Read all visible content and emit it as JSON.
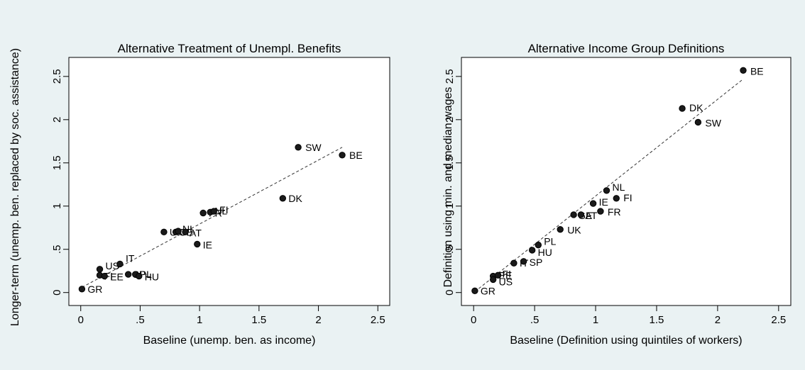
{
  "chart_data": [
    {
      "type": "scatter",
      "title": "Alternative Treatment of Unempl. Benefits",
      "xlabel": "Baseline (unemp. ben. as income)",
      "ylabel": "Longer-term (unemp. ben. replaced by soc. assistance)",
      "xlim": [
        -0.1,
        2.6
      ],
      "ylim": [
        -0.15,
        2.72
      ],
      "xticks": [
        0,
        0.5,
        1,
        1.5,
        2,
        2.5
      ],
      "xtick_labels": [
        "0",
        ".5",
        "1",
        "1.5",
        "2",
        "2.5"
      ],
      "yticks": [
        0,
        0.5,
        1,
        1.5,
        2,
        2.5
      ],
      "ytick_labels": [
        "0",
        ".5",
        "1",
        "1.5",
        "2",
        "2.5"
      ],
      "grid": false,
      "fit_line": {
        "style": "dashed",
        "x": [
          0.01,
          2.2
        ],
        "y": [
          0.06,
          1.68
        ]
      },
      "points": [
        {
          "label": "GR",
          "x": 0.01,
          "y": 0.04
        },
        {
          "label": "US",
          "x": 0.16,
          "y": 0.27
        },
        {
          "label": "FI",
          "x": 0.16,
          "y": 0.2
        },
        {
          "label": "EE",
          "x": 0.2,
          "y": 0.19
        },
        {
          "label": "IT",
          "x": 0.33,
          "y": 0.33
        },
        {
          "label": "SP",
          "x": 0.4,
          "y": 0.21
        },
        {
          "label": "PL",
          "x": 0.46,
          "y": 0.21
        },
        {
          "label": "HU",
          "x": 0.49,
          "y": 0.19
        },
        {
          "label": "UK",
          "x": 0.7,
          "y": 0.7
        },
        {
          "label": "GE",
          "x": 0.8,
          "y": 0.7
        },
        {
          "label": "NL",
          "x": 0.82,
          "y": 0.71
        },
        {
          "label": "AT",
          "x": 0.88,
          "y": 0.7
        },
        {
          "label": "IE",
          "x": 0.98,
          "y": 0.56
        },
        {
          "label": "FR",
          "x": 1.03,
          "y": 0.92
        },
        {
          "label": "NL",
          "x": 1.09,
          "y": 0.93
        },
        {
          "label": "FI",
          "x": 1.12,
          "y": 0.94
        },
        {
          "label": "DK",
          "x": 1.7,
          "y": 1.09
        },
        {
          "label": "SW",
          "x": 1.83,
          "y": 1.68
        },
        {
          "label": "BE",
          "x": 2.2,
          "y": 1.59
        }
      ]
    },
    {
      "type": "scatter",
      "title": "Alternative Income Group Definitions",
      "xlabel": "Baseline (Definition using quintiles of workers)",
      "ylabel": "Definition using min. and median wages",
      "xlim": [
        -0.1,
        2.6
      ],
      "ylim": [
        -0.15,
        2.72
      ],
      "xticks": [
        0,
        0.5,
        1,
        1.5,
        2,
        2.5
      ],
      "xtick_labels": [
        "0",
        ".5",
        "1",
        "1.5",
        "2",
        "2.5"
      ],
      "yticks": [
        0,
        0.5,
        1,
        1.5,
        2,
        2.5
      ],
      "ytick_labels": [
        "0",
        ".5",
        "1",
        "1.5",
        "2",
        "2.5"
      ],
      "grid": false,
      "fit_line": {
        "style": "dashed",
        "x": [
          0.01,
          2.21
        ],
        "y": [
          0.01,
          2.47
        ]
      },
      "points": [
        {
          "label": "GR",
          "x": 0.01,
          "y": 0.02
        },
        {
          "label": "EE",
          "x": 0.16,
          "y": 0.19
        },
        {
          "label": "US",
          "x": 0.16,
          "y": 0.15
        },
        {
          "label": "FI",
          "x": 0.2,
          "y": 0.2
        },
        {
          "label": "IT",
          "x": 0.33,
          "y": 0.34
        },
        {
          "label": "SP",
          "x": 0.41,
          "y": 0.36
        },
        {
          "label": "HU",
          "x": 0.48,
          "y": 0.49
        },
        {
          "label": "PL",
          "x": 0.53,
          "y": 0.55
        },
        {
          "label": "UK",
          "x": 0.71,
          "y": 0.73
        },
        {
          "label": "GE",
          "x": 0.82,
          "y": 0.9
        },
        {
          "label": "AT",
          "x": 0.88,
          "y": 0.9
        },
        {
          "label": "IE",
          "x": 0.98,
          "y": 1.03
        },
        {
          "label": "FR",
          "x": 1.04,
          "y": 0.94
        },
        {
          "label": "NL",
          "x": 1.09,
          "y": 1.18
        },
        {
          "label": "FI",
          "x": 1.17,
          "y": 1.09
        },
        {
          "label": "DK",
          "x": 1.71,
          "y": 2.13
        },
        {
          "label": "SW",
          "x": 1.84,
          "y": 1.97
        },
        {
          "label": "BE",
          "x": 2.21,
          "y": 2.57
        }
      ]
    }
  ]
}
